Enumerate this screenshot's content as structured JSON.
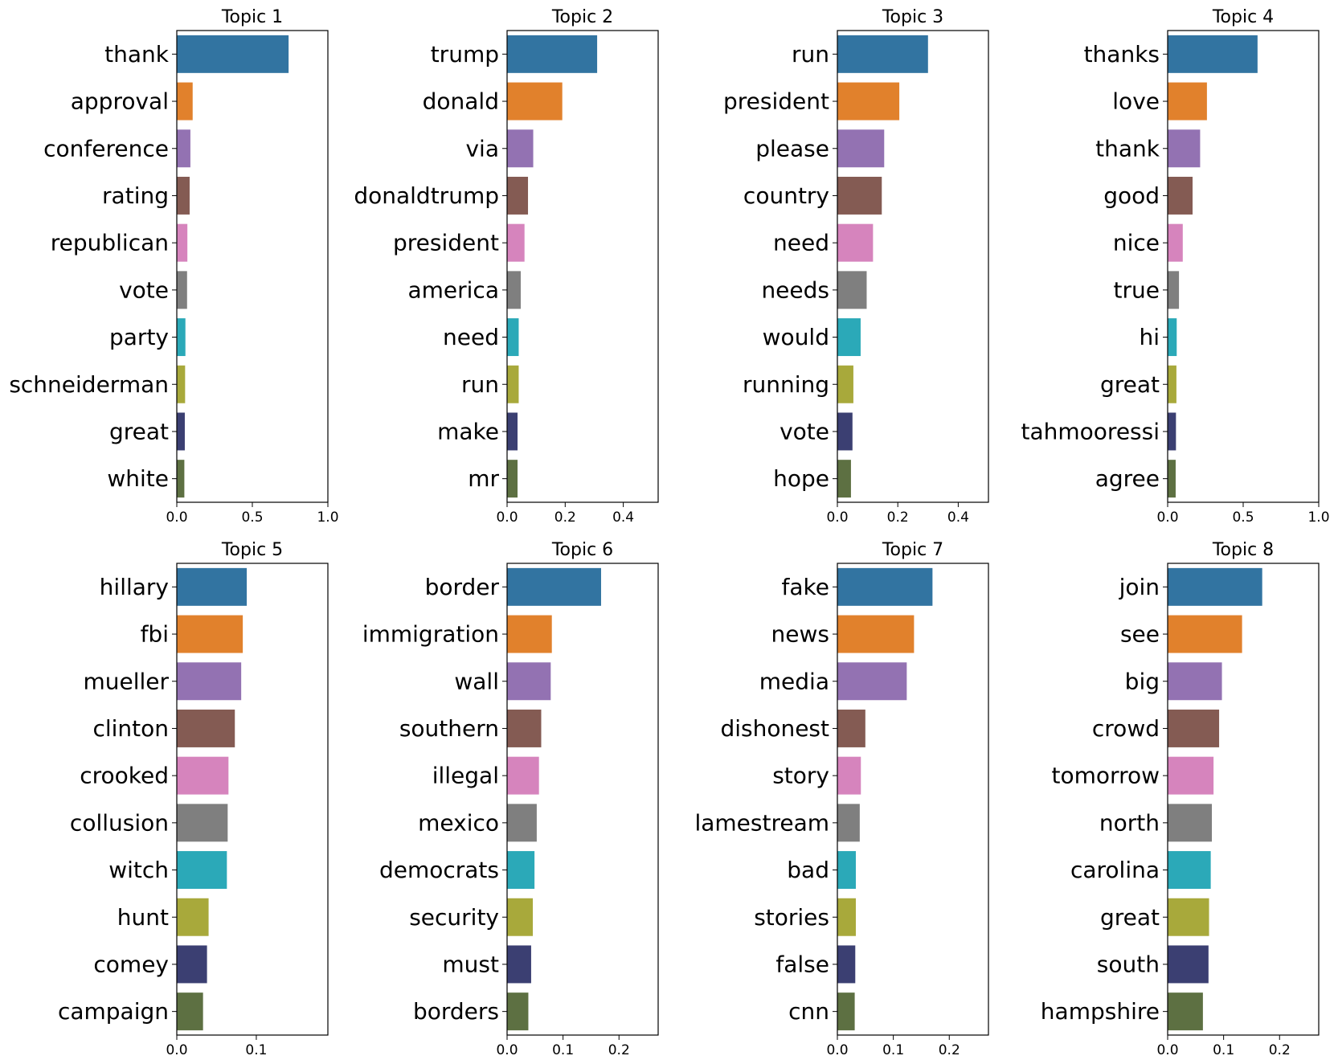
{
  "colors": [
    "#3274a1",
    "#e1812c",
    "#9372b2",
    "#845b53",
    "#d684bd",
    "#7f7f7f",
    "#2ba9b8",
    "#a8a93b",
    "#3b3f72",
    "#5d7042"
  ],
  "chart_data": [
    {
      "type": "bar",
      "orientation": "horizontal",
      "title": "Topic 1",
      "categories": [
        "thank",
        "approval",
        "conference",
        "rating",
        "republican",
        "vote",
        "party",
        "schneiderman",
        "great",
        "white"
      ],
      "values": [
        0.74,
        0.105,
        0.09,
        0.085,
        0.07,
        0.068,
        0.057,
        0.055,
        0.053,
        0.05
      ],
      "xlim": [
        0,
        1.0
      ],
      "xticks": [
        0.0,
        0.5,
        1.0
      ],
      "xtick_labels": [
        "0.0",
        "0.5",
        "1.0"
      ]
    },
    {
      "type": "bar",
      "orientation": "horizontal",
      "title": "Topic 2",
      "categories": [
        "trump",
        "donald",
        "via",
        "donaldtrump",
        "president",
        "america",
        "need",
        "run",
        "make",
        "mr"
      ],
      "values": [
        0.31,
        0.19,
        0.09,
        0.072,
        0.06,
        0.047,
        0.04,
        0.04,
        0.036,
        0.036
      ],
      "xlim": [
        0,
        0.52
      ],
      "xticks": [
        0.0,
        0.2,
        0.4
      ],
      "xtick_labels": [
        "0.0",
        "0.2",
        "0.4"
      ]
    },
    {
      "type": "bar",
      "orientation": "horizontal",
      "title": "Topic 3",
      "categories": [
        "run",
        "president",
        "please",
        "country",
        "need",
        "needs",
        "would",
        "running",
        "vote",
        "hope"
      ],
      "values": [
        0.3,
        0.205,
        0.155,
        0.147,
        0.118,
        0.097,
        0.077,
        0.053,
        0.05,
        0.045
      ],
      "xlim": [
        0,
        0.5
      ],
      "xticks": [
        0.0,
        0.2,
        0.4
      ],
      "xtick_labels": [
        "0.0",
        "0.2",
        "0.4"
      ]
    },
    {
      "type": "bar",
      "orientation": "horizontal",
      "title": "Topic 4",
      "categories": [
        "thanks",
        "love",
        "thank",
        "good",
        "nice",
        "true",
        "hi",
        "great",
        "tahmooressi",
        "agree"
      ],
      "values": [
        0.595,
        0.26,
        0.215,
        0.165,
        0.1,
        0.075,
        0.06,
        0.058,
        0.055,
        0.053
      ],
      "xlim": [
        0,
        1.0
      ],
      "xticks": [
        0.0,
        0.5,
        1.0
      ],
      "xtick_labels": [
        "0.0",
        "0.5",
        "1.0"
      ]
    },
    {
      "type": "bar",
      "orientation": "horizontal",
      "title": "Topic 5",
      "categories": [
        "hillary",
        "fbi",
        "mueller",
        "clinton",
        "crooked",
        "collusion",
        "witch",
        "hunt",
        "comey",
        "campaign"
      ],
      "values": [
        0.088,
        0.083,
        0.081,
        0.073,
        0.065,
        0.064,
        0.063,
        0.04,
        0.038,
        0.033
      ],
      "xlim": [
        0,
        0.19
      ],
      "xticks": [
        0.0,
        0.1
      ],
      "xtick_labels": [
        "0.0",
        "0.1"
      ]
    },
    {
      "type": "bar",
      "orientation": "horizontal",
      "title": "Topic 6",
      "categories": [
        "border",
        "immigration",
        "wall",
        "southern",
        "illegal",
        "mexico",
        "democrats",
        "security",
        "must",
        "borders"
      ],
      "values": [
        0.168,
        0.08,
        0.078,
        0.061,
        0.057,
        0.053,
        0.049,
        0.046,
        0.043,
        0.038
      ],
      "xlim": [
        0,
        0.27
      ],
      "xticks": [
        0.0,
        0.1,
        0.2
      ],
      "xtick_labels": [
        "0.0",
        "0.1",
        "0.2"
      ]
    },
    {
      "type": "bar",
      "orientation": "horizontal",
      "title": "Topic 7",
      "categories": [
        "fake",
        "news",
        "media",
        "dishonest",
        "story",
        "lamestream",
        "bad",
        "stories",
        "false",
        "cnn"
      ],
      "values": [
        0.17,
        0.137,
        0.124,
        0.05,
        0.042,
        0.04,
        0.033,
        0.033,
        0.032,
        0.031
      ],
      "xlim": [
        0,
        0.27
      ],
      "xticks": [
        0.0,
        0.1,
        0.2
      ],
      "xtick_labels": [
        "0.0",
        "0.1",
        "0.2"
      ]
    },
    {
      "type": "bar",
      "orientation": "horizontal",
      "title": "Topic 8",
      "categories": [
        "join",
        "see",
        "big",
        "crowd",
        "tomorrow",
        "north",
        "carolina",
        "great",
        "south",
        "hampshire"
      ],
      "values": [
        0.169,
        0.133,
        0.097,
        0.092,
        0.082,
        0.079,
        0.077,
        0.074,
        0.073,
        0.063
      ],
      "xlim": [
        0,
        0.27
      ],
      "xticks": [
        0.0,
        0.1,
        0.2
      ],
      "xtick_labels": [
        "0.0",
        "0.1",
        "0.2"
      ]
    }
  ]
}
